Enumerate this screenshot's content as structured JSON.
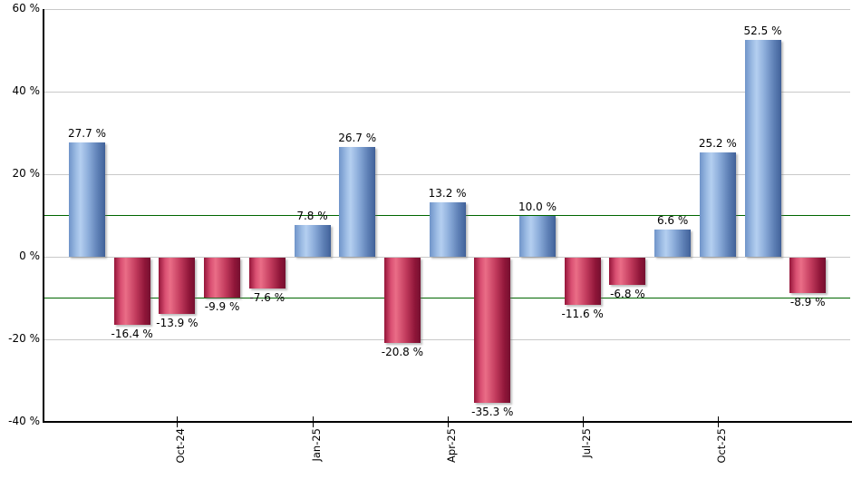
{
  "chart_data": {
    "type": "bar",
    "title": "",
    "xlabel": "",
    "ylabel": "",
    "ylim": [
      -40,
      60
    ],
    "grid": true,
    "gridline_step": 20,
    "legend": "none",
    "colors": {
      "positive_bar": "#7b9fd4",
      "negative_bar": "#c22a52",
      "reference_line": "#006600",
      "gridline": "#c9c9c9",
      "axis": "#000000",
      "background": "#ffffff",
      "label_text": "#000000"
    },
    "y_ticks": [
      {
        "value": 60,
        "label": "60 %"
      },
      {
        "value": 40,
        "label": "40 %"
      },
      {
        "value": 20,
        "label": "20 %"
      },
      {
        "value": 0,
        "label": "0 %"
      },
      {
        "value": -20,
        "label": "-20 %"
      },
      {
        "value": -40,
        "label": "-40 %"
      }
    ],
    "x_ticks": [
      {
        "label": "Oct-24",
        "bar_index": 2
      },
      {
        "label": "Jan-25",
        "bar_index": 5
      },
      {
        "label": "Apr-25",
        "bar_index": 8
      },
      {
        "label": "Jul-25",
        "bar_index": 11
      },
      {
        "label": "Oct-25",
        "bar_index": 14
      }
    ],
    "reference_lines": [
      {
        "value": 10
      },
      {
        "value": -10
      }
    ],
    "bars": [
      {
        "value": 27.7,
        "label": "27.7 %"
      },
      {
        "value": -16.4,
        "label": "-16.4 %"
      },
      {
        "value": -13.9,
        "label": "-13.9 %"
      },
      {
        "value": -9.9,
        "label": "-9.9 %"
      },
      {
        "value": -7.6,
        "label": "-7.6 %"
      },
      {
        "value": 7.8,
        "label": "7.8 %"
      },
      {
        "value": 26.7,
        "label": "26.7 %"
      },
      {
        "value": -20.8,
        "label": "-20.8 %"
      },
      {
        "value": 13.2,
        "label": "13.2 %"
      },
      {
        "value": -35.3,
        "label": "-35.3 %"
      },
      {
        "value": 10.0,
        "label": "10.0 %"
      },
      {
        "value": -11.6,
        "label": "-11.6 %"
      },
      {
        "value": -6.8,
        "label": "-6.8 %"
      },
      {
        "value": 6.6,
        "label": "6.6 %"
      },
      {
        "value": 25.2,
        "label": "25.2 %"
      },
      {
        "value": 52.5,
        "label": "52.5 %"
      },
      {
        "value": -8.9,
        "label": "-8.9 %"
      }
    ]
  }
}
